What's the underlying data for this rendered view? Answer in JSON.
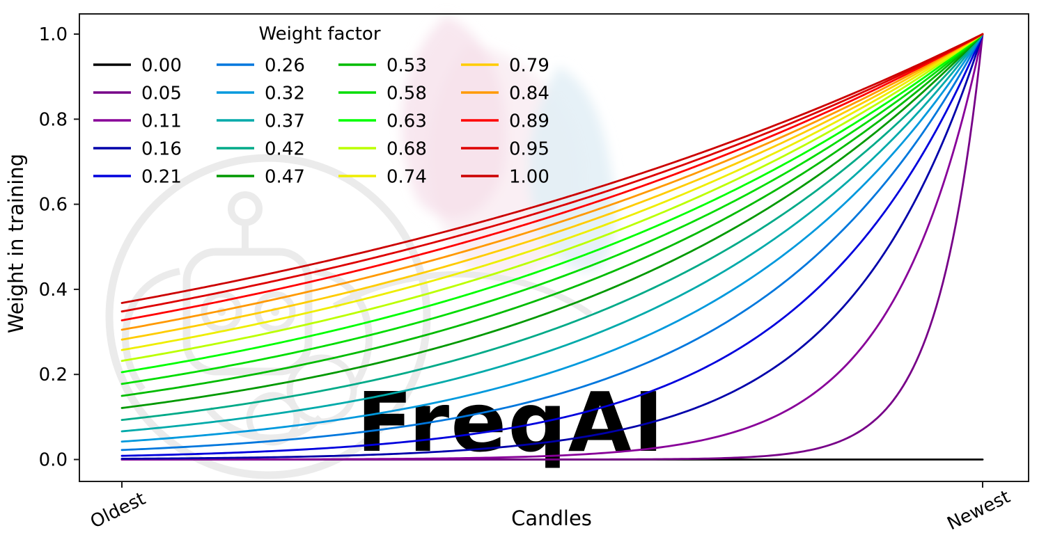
{
  "figure": {
    "background": "#ffffff",
    "watermark": {
      "text": "FreqAI",
      "text_color": "#ededed",
      "logo": "freqtrade-bot-logo",
      "logo_color": "#ebebeb",
      "petal_pink": "#f6dfea",
      "petal_blue": "#e2eff6"
    }
  },
  "chart_data": {
    "type": "line",
    "title": "",
    "xlabel": "Candles",
    "ylabel": "Weight in training",
    "x_tick_labels": [
      "Oldest",
      "Newest"
    ],
    "y_tick_labels": [
      "0.0",
      "0.2",
      "0.4",
      "0.6",
      "0.8",
      "1.0"
    ],
    "xlim": [
      0,
      1
    ],
    "ylim": [
      0,
      1
    ],
    "grid": false,
    "legend": {
      "title": "Weight factor",
      "position": "upper-left",
      "columns": 4,
      "rows": 5
    },
    "curve_formula": "weight(x) = exp(-(1 - x) / wf) for wf > 0; wf = 0 gives weight = 0 (flat line); all curves converge to 1.0 at Newest",
    "series": [
      {
        "label": "0.00",
        "wf": 0.0,
        "color": "#000000"
      },
      {
        "label": "0.05",
        "wf": 0.0526,
        "color": "#770088"
      },
      {
        "label": "0.11",
        "wf": 0.1053,
        "color": "#880099"
      },
      {
        "label": "0.16",
        "wf": 0.1579,
        "color": "#0000aa"
      },
      {
        "label": "0.21",
        "wf": 0.2105,
        "color": "#0000dd"
      },
      {
        "label": "0.26",
        "wf": 0.2632,
        "color": "#0077dd"
      },
      {
        "label": "0.32",
        "wf": 0.3158,
        "color": "#0099dd"
      },
      {
        "label": "0.37",
        "wf": 0.3684,
        "color": "#00aaaa"
      },
      {
        "label": "0.42",
        "wf": 0.4211,
        "color": "#00aa88"
      },
      {
        "label": "0.47",
        "wf": 0.4737,
        "color": "#009900"
      },
      {
        "label": "0.53",
        "wf": 0.5263,
        "color": "#00bb00"
      },
      {
        "label": "0.58",
        "wf": 0.5789,
        "color": "#00dd00"
      },
      {
        "label": "0.63",
        "wf": 0.6316,
        "color": "#00ff00"
      },
      {
        "label": "0.68",
        "wf": 0.6842,
        "color": "#bbff00"
      },
      {
        "label": "0.74",
        "wf": 0.7368,
        "color": "#eeee00"
      },
      {
        "label": "0.79",
        "wf": 0.7895,
        "color": "#ffcc00"
      },
      {
        "label": "0.84",
        "wf": 0.8421,
        "color": "#ff9900"
      },
      {
        "label": "0.89",
        "wf": 0.8947,
        "color": "#ff0000"
      },
      {
        "label": "0.95",
        "wf": 0.9474,
        "color": "#dd0000"
      },
      {
        "label": "1.00",
        "wf": 1.0,
        "color": "#cc0000"
      }
    ]
  }
}
